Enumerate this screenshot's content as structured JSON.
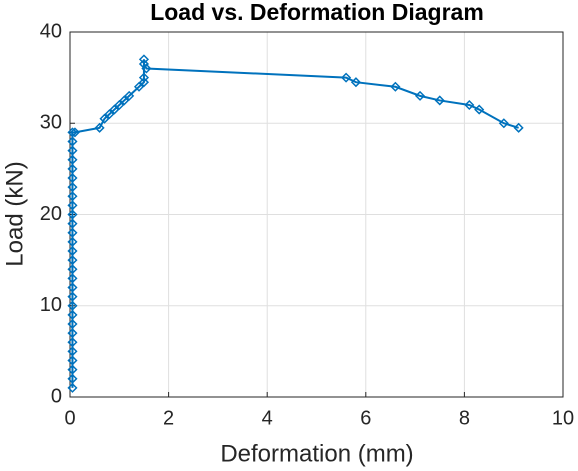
{
  "chart_data": {
    "type": "line",
    "title": "Load vs. Deformation Diagram",
    "xlabel": "Deformation (mm)",
    "ylabel": "Load (kN)",
    "series": [
      {
        "color": "#0072bd",
        "x": [
          0.05,
          0.05,
          0.05,
          0.05,
          0.05,
          0.05,
          0.05,
          0.05,
          0.05,
          0.05,
          0.05,
          0.05,
          0.05,
          0.05,
          0.05,
          0.05,
          0.05,
          0.05,
          0.05,
          0.05,
          0.05,
          0.05,
          0.05,
          0.05,
          0.05,
          0.05,
          0.05,
          0.05,
          0.05,
          0.1,
          0.6,
          0.7,
          0.8,
          0.9,
          1.0,
          1.1,
          1.2,
          1.4,
          1.5,
          1.5,
          1.5,
          1.5,
          1.55,
          5.6,
          5.8,
          6.6,
          7.1,
          7.5,
          8.1,
          8.3,
          8.8,
          9.1
        ],
        "values": [
          1,
          2,
          3,
          4,
          5,
          6,
          7,
          8,
          9,
          10,
          11,
          12,
          13,
          14,
          15,
          16,
          17,
          18,
          19,
          20,
          21,
          22,
          23,
          24,
          25,
          26,
          27,
          28,
          29,
          29,
          29.5,
          30.5,
          31,
          31.5,
          32,
          32.5,
          33,
          34,
          34.5,
          35,
          37,
          36.5,
          36,
          35,
          34.5,
          34,
          33,
          32.5,
          32,
          31.5,
          30,
          29.5
        ]
      }
    ],
    "xlim": [
      0,
      10
    ],
    "xticks": [
      0,
      2,
      4,
      6,
      8,
      10
    ],
    "ylim": [
      0,
      40
    ],
    "yticks": [
      0,
      10,
      20,
      30,
      40
    ],
    "grid": true
  }
}
